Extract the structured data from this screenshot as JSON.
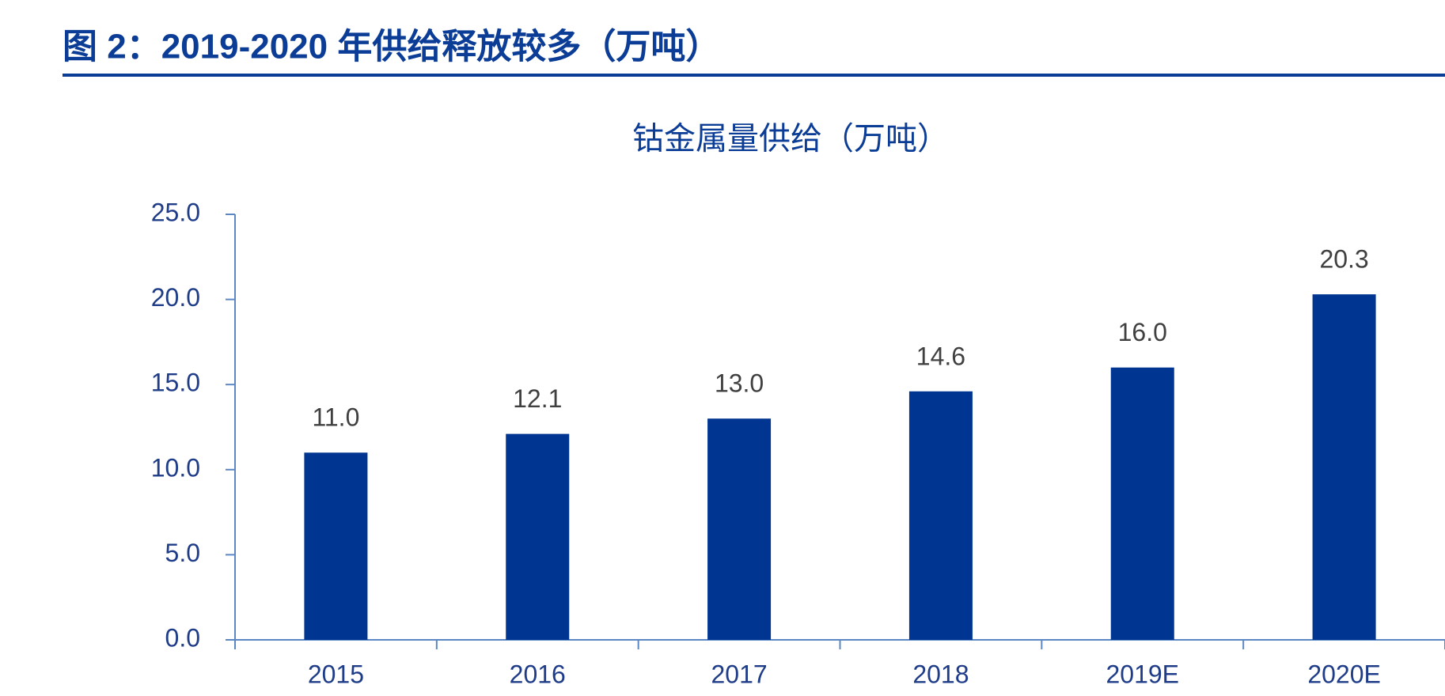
{
  "header": {
    "title": "图 2：2019-2020 年供给释放较多（万吨）"
  },
  "chart_data": {
    "type": "bar",
    "title": "钴金属量供给（万吨）",
    "categories": [
      "2015",
      "2016",
      "2017",
      "2018",
      "2019E",
      "2020E"
    ],
    "values": [
      11.0,
      12.1,
      13.0,
      14.6,
      16.0,
      20.3
    ],
    "value_labels": [
      "11.0",
      "12.1",
      "13.0",
      "14.6",
      "16.0",
      "20.3"
    ],
    "color": "#003591",
    "ylim": [
      0,
      25
    ],
    "yticks": [
      {
        "value": 0,
        "label": "0.0"
      },
      {
        "value": 5,
        "label": "5.0"
      },
      {
        "value": 10,
        "label": "10.0"
      },
      {
        "value": 15,
        "label": "15.0"
      },
      {
        "value": 20,
        "label": "20.0"
      },
      {
        "value": 25,
        "label": "25.0"
      }
    ],
    "grid": false
  }
}
